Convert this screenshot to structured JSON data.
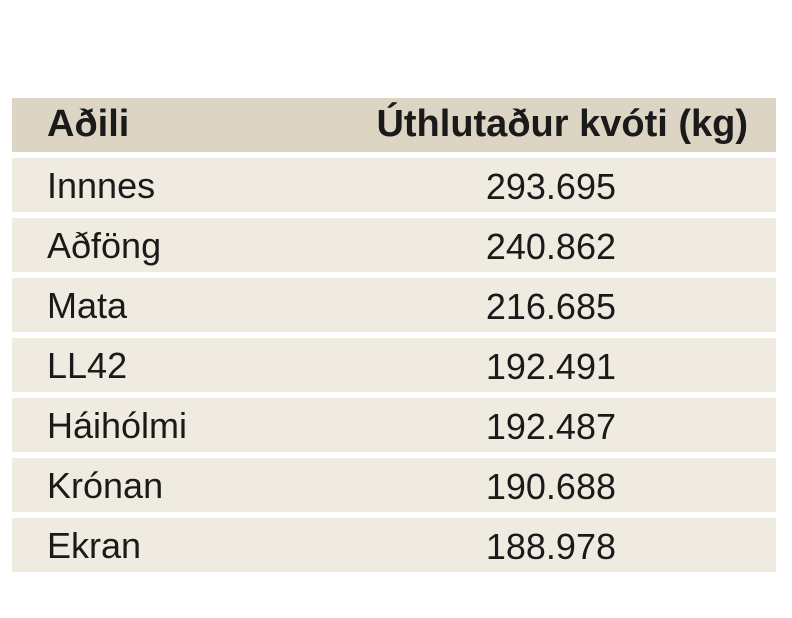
{
  "table": {
    "headers": [
      "Aðili",
      "Úthlutaður kvóti (kg)"
    ],
    "rows": [
      [
        "Innnes",
        "293.695"
      ],
      [
        "Aðföng",
        "240.862"
      ],
      [
        "Mata",
        "216.685"
      ],
      [
        "LL42",
        "192.491"
      ],
      [
        "Háihólmi",
        "192.487"
      ],
      [
        "Krónan",
        "190.688"
      ],
      [
        "Ekran",
        "188.978"
      ]
    ]
  },
  "colors": {
    "header_bg": "#ddd5c4",
    "row_bg": "#f0ebe1"
  }
}
